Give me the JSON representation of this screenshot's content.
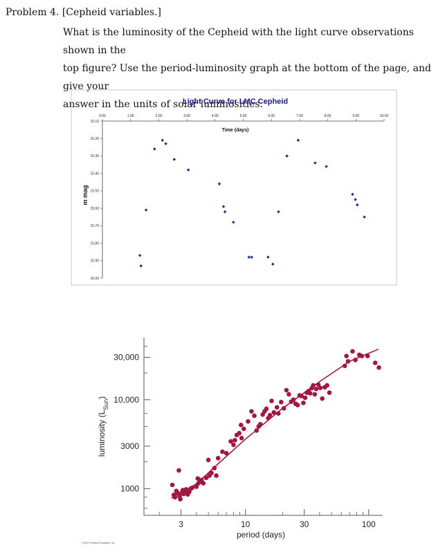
{
  "problem": {
    "label": "Problem 4.",
    "topic": "[Cepheid variables.]",
    "lines": [
      "What is the luminosity of the Cepheid with the light curve observations shown in the",
      "top figure? Use the period-luminosity graph at the bottom of the page, and give your",
      "answer in the units of solar luminosities."
    ]
  },
  "chart_data": [
    {
      "type": "scatter",
      "title": "Light Curve for LMC Cepheid",
      "xlabel": "Time (days)",
      "ylabel": "m mag",
      "xlim": [
        0,
        10
      ],
      "ylim": [
        16.0,
        15.1
      ],
      "y_inverted": true,
      "x_axis_position": "top",
      "grid": false,
      "xticks": [
        "0.00",
        "1.00",
        "2.00",
        "3.00",
        "4.00",
        "5.00",
        "6.00",
        "7.00",
        "8.00",
        "9.00",
        "10.00"
      ],
      "yticks": [
        "15.10",
        "15.20",
        "15.30",
        "15.40",
        "15.50",
        "15.60",
        "15.70",
        "15.80",
        "15.90",
        "16.00"
      ],
      "color": "#1c2f8c",
      "points": [
        [
          1.33,
          15.87
        ],
        [
          1.37,
          15.93
        ],
        [
          1.55,
          15.61
        ],
        [
          1.85,
          15.26
        ],
        [
          2.13,
          15.21
        ],
        [
          2.25,
          15.23
        ],
        [
          2.55,
          15.32
        ],
        [
          3.05,
          15.38
        ],
        [
          4.15,
          15.46
        ],
        [
          4.3,
          15.59
        ],
        [
          4.35,
          15.62
        ],
        [
          4.65,
          15.68
        ],
        [
          5.2,
          15.88
        ],
        [
          5.3,
          15.88
        ],
        [
          5.88,
          15.88
        ],
        [
          6.05,
          15.92
        ],
        [
          6.25,
          15.62
        ],
        [
          6.55,
          15.3
        ],
        [
          6.95,
          15.21
        ],
        [
          7.55,
          15.34
        ],
        [
          7.95,
          15.36
        ],
        [
          8.88,
          15.52
        ],
        [
          8.98,
          15.55
        ],
        [
          9.05,
          15.58
        ],
        [
          9.3,
          15.65
        ]
      ]
    },
    {
      "type": "scatter",
      "xlabel": "period (days)",
      "ylabel": "luminosity (L",
      "ylabel_sub": "Sun",
      "ylabel_close": ")",
      "x_log": true,
      "y_log": true,
      "xlim": [
        1.5,
        130
      ],
      "ylim": [
        500,
        50000
      ],
      "xticks": [
        {
          "value": 3,
          "label": "3"
        },
        {
          "value": 10,
          "label": "10"
        },
        {
          "value": 30,
          "label": "30"
        },
        {
          "value": 100,
          "label": "100"
        }
      ],
      "yticks": [
        {
          "value": 1000,
          "label": "1000"
        },
        {
          "value": 3000,
          "label": "3000"
        },
        {
          "value": 10000,
          "label": "10,000"
        },
        {
          "value": 30000,
          "label": "30,000"
        }
      ],
      "credit": "©2012 Pearson Education, Inc.",
      "point_color": "#a01840",
      "line_color": "#a01840",
      "points": [
        [
          2.55,
          1100
        ],
        [
          2.62,
          850
        ],
        [
          2.68,
          800
        ],
        [
          2.75,
          940
        ],
        [
          2.8,
          900
        ],
        [
          2.88,
          1600
        ],
        [
          2.92,
          820
        ],
        [
          2.96,
          760
        ],
        [
          3.05,
          900
        ],
        [
          3.1,
          960
        ],
        [
          3.15,
          870
        ],
        [
          3.25,
          920
        ],
        [
          3.3,
          980
        ],
        [
          3.4,
          860
        ],
        [
          3.5,
          920
        ],
        [
          3.6,
          1000
        ],
        [
          3.7,
          1020
        ],
        [
          4.0,
          1050
        ],
        [
          4.1,
          1300
        ],
        [
          4.15,
          1150
        ],
        [
          4.3,
          1200
        ],
        [
          4.4,
          1250
        ],
        [
          4.55,
          1150
        ],
        [
          4.8,
          1320
        ],
        [
          5.0,
          2100
        ],
        [
          5.1,
          1400
        ],
        [
          5.3,
          1500
        ],
        [
          5.6,
          1700
        ],
        [
          5.8,
          1400
        ],
        [
          6.0,
          2200
        ],
        [
          6.5,
          2600
        ],
        [
          7.0,
          2500
        ],
        [
          7.6,
          3400
        ],
        [
          8.0,
          3100
        ],
        [
          8.2,
          3500
        ],
        [
          8.5,
          4000
        ],
        [
          8.9,
          4200
        ],
        [
          9.2,
          5200
        ],
        [
          9.3,
          3700
        ],
        [
          9.7,
          4700
        ],
        [
          10.5,
          5700
        ],
        [
          11.2,
          7400
        ],
        [
          11.8,
          6600
        ],
        [
          12.3,
          4500
        ],
        [
          12.8,
          5000
        ],
        [
          13.2,
          5300
        ],
        [
          13.8,
          6800
        ],
        [
          14.3,
          7400
        ],
        [
          14.8,
          7900
        ],
        [
          15.3,
          6200
        ],
        [
          15.8,
          6700
        ],
        [
          16.3,
          9700
        ],
        [
          17.0,
          7200
        ],
        [
          18.0,
          8200
        ],
        [
          18.5,
          7000
        ],
        [
          19.5,
          9400
        ],
        [
          20.5,
          8000
        ],
        [
          21.5,
          12800
        ],
        [
          22.5,
          11500
        ],
        [
          23.5,
          9500
        ],
        [
          24.5,
          10000
        ],
        [
          25.5,
          9000
        ],
        [
          26.5,
          8700
        ],
        [
          27.5,
          11200
        ],
        [
          28.5,
          11000
        ],
        [
          29.5,
          9200
        ],
        [
          30.5,
          10500
        ],
        [
          31.5,
          12000
        ],
        [
          32.5,
          12500
        ],
        [
          33.5,
          11800
        ],
        [
          34.5,
          13500
        ],
        [
          35.5,
          14500
        ],
        [
          36.5,
          11500
        ],
        [
          37.5,
          13200
        ],
        [
          39.0,
          14800
        ],
        [
          40.5,
          13600
        ],
        [
          42.0,
          10300
        ],
        [
          44.0,
          13800
        ],
        [
          46.0,
          14500
        ],
        [
          48.0,
          12000
        ],
        [
          64.0,
          24000
        ],
        [
          66.0,
          31000
        ],
        [
          68.0,
          27000
        ],
        [
          74.0,
          35000
        ],
        [
          78.0,
          28000
        ],
        [
          84.0,
          32000
        ],
        [
          88.0,
          31000
        ],
        [
          98.0,
          31000
        ],
        [
          113.0,
          26000
        ],
        [
          121.0,
          23000
        ]
      ],
      "fit_line": [
        [
          2.5,
          780
        ],
        [
          4,
          1130
        ],
        [
          6,
          1900
        ],
        [
          10,
          3600
        ],
        [
          20,
          8000
        ],
        [
          40,
          16000
        ],
        [
          70,
          27000
        ],
        [
          120,
          37000
        ]
      ]
    }
  ]
}
